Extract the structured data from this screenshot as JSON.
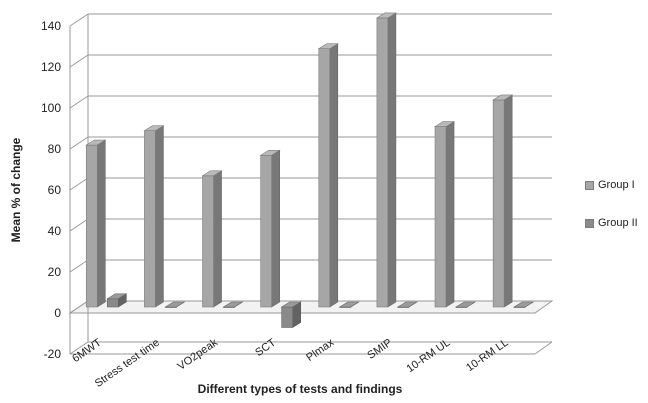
{
  "chart_data": {
    "type": "bar",
    "title": "",
    "xlabel": "Different types of tests and findings",
    "ylabel": "Mean % of change",
    "categories": [
      "6MWT",
      "Stress test time",
      "VO2peak",
      "SCT",
      "Plmax",
      "SMIP",
      "10-RM UL",
      "10-RM LL"
    ],
    "series": [
      {
        "name": "Group I",
        "values": [
          79,
          86,
          64,
          74,
          126,
          141,
          88,
          101
        ]
      },
      {
        "name": "Group II",
        "values": [
          4,
          0,
          0,
          -10,
          0,
          0,
          0,
          0
        ]
      }
    ],
    "ylim": [
      -20,
      140
    ],
    "yticks": [
      -20,
      0,
      20,
      40,
      60,
      80,
      100,
      120,
      140
    ],
    "grid": true,
    "legend_position": "right",
    "colors": {
      "group1": "#a6a6a6",
      "group2": "#8a8a8a",
      "grid": "#9a9a9a",
      "text": "#222222"
    }
  }
}
